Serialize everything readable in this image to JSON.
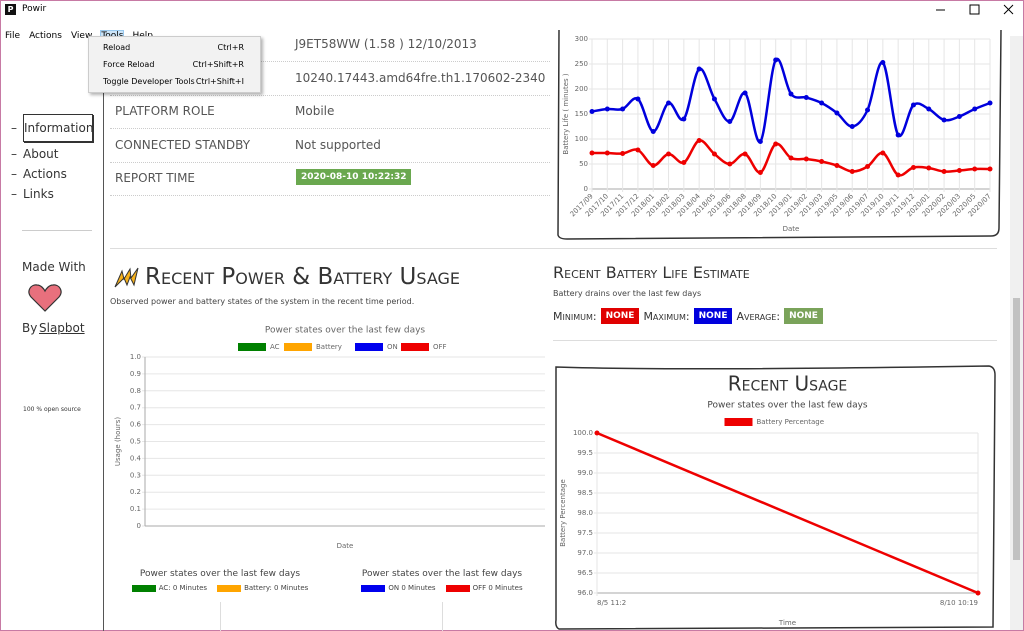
{
  "window": {
    "title": "Powir"
  },
  "menu": [
    "File",
    "Actions",
    "View",
    "Tools",
    "Help"
  ],
  "dropdown": [
    {
      "label": "Reload",
      "shortcut": "Ctrl+R"
    },
    {
      "label": "Force Reload",
      "shortcut": "Ctrl+Shift+R"
    },
    {
      "label": "Toggle Developer Tools",
      "shortcut": "Ctrl+Shift+I"
    }
  ],
  "sidebar": {
    "links": [
      "Information",
      "About",
      "Actions",
      "Links"
    ],
    "made_with": "Made With",
    "by": "By",
    "author": "Slapbot",
    "footer": "100 % open source"
  },
  "info_rows": [
    {
      "value": "J9ET58WW (1.58 ) 12/10/2013"
    },
    {
      "value": "10240.17443.amd64fre.th1.170602-2340"
    },
    {
      "label": "PLATFORM ROLE",
      "value": "Mobile"
    },
    {
      "label": "CONNECTED STANDBY",
      "value": "Not supported"
    },
    {
      "label": "REPORT TIME",
      "value": "2020-08-10 10:22:32"
    }
  ],
  "section": {
    "title": "Recent Power & Battery Usage",
    "subtitle": "Observed power and battery states of the system in the recent time period."
  },
  "estimate": {
    "title": "Recent Battery Life Estimate",
    "subtitle": "Battery drains over the last few days",
    "items": [
      {
        "label": "Minimum:",
        "value": "NONE",
        "color": "#e00000"
      },
      {
        "label": "Maximum:",
        "value": "NONE",
        "color": "#0000dd"
      },
      {
        "label": "Average:",
        "value": "NONE",
        "color": "#7aa35a"
      }
    ]
  },
  "battery_chart": {
    "type": "line",
    "ylabel": "Battery Life ( minutes )",
    "xlabel": "Date",
    "categories": [
      "2017/09",
      "2017/10",
      "2017/11",
      "2017/12",
      "2018/01",
      "2018/02",
      "2018/03",
      "2018/04",
      "2018/05",
      "2018/06",
      "2018/08",
      "2018/09",
      "2018/10",
      "2019/01",
      "2019/02",
      "2019/03",
      "2019/05",
      "2019/06",
      "2019/07",
      "2019/10",
      "2019/11",
      "2019/12",
      "2020/01",
      "2020/02",
      "2020/03",
      "2020/05",
      "2020/07"
    ],
    "series": [
      {
        "color": "#0000dd",
        "values": [
          155,
          160,
          160,
          180,
          115,
          172,
          140,
          240,
          180,
          135,
          192,
          95,
          258,
          190,
          183,
          172,
          152,
          125,
          158,
          253,
          108,
          168,
          160,
          138,
          145,
          160,
          172
        ]
      },
      {
        "color": "#ee0000",
        "values": [
          72,
          72,
          71,
          78,
          47,
          70,
          53,
          97,
          70,
          50,
          70,
          33,
          90,
          62,
          60,
          55,
          47,
          35,
          45,
          72,
          28,
          43,
          42,
          35,
          37,
          40,
          40
        ]
      }
    ],
    "ylim": [
      0,
      300
    ],
    "yticks": [
      0,
      50,
      100,
      150,
      200,
      250,
      300
    ],
    "grid": true,
    "smooth": true
  },
  "power_chart": {
    "type": "line",
    "title": "Power states over the last few days",
    "ylabel": "Usage (hours)",
    "xlabel": "Date",
    "categories": [],
    "series": [
      {
        "name": "AC",
        "color": "#008000",
        "values": []
      },
      {
        "name": "Battery",
        "color": "#ffa500",
        "values": []
      },
      {
        "name": "ON",
        "color": "#0000ee",
        "values": []
      },
      {
        "name": "OFF",
        "color": "#ee0000",
        "values": []
      }
    ],
    "ylim": [
      0,
      1
    ],
    "yticks": [
      0,
      0.1,
      0.2,
      0.3,
      0.4,
      0.5,
      0.6,
      0.7,
      0.8,
      0.9,
      {
        "value": 1,
        "label": "1.0"
      }
    ],
    "grid": true
  },
  "usage_chart": {
    "type": "line",
    "title": "Recent Usage",
    "subtitle": "Power states over the last few days",
    "ylabel": "Battery Percentage",
    "xlabel": "Time",
    "categories": [
      "8/5 11:2",
      "8/10 10:19"
    ],
    "series": [
      {
        "name": "Battery Percentage",
        "color": "#ee0000",
        "values": [
          100,
          96
        ]
      }
    ],
    "ylim": [
      96,
      100
    ],
    "yticks": [
      {
        "value": 96,
        "label": "96.0"
      },
      96.5,
      {
        "value": 97,
        "label": "97.0"
      },
      97.5,
      {
        "value": 98,
        "label": "98.0"
      },
      98.5,
      {
        "value": 99,
        "label": "99.0"
      },
      99.5,
      {
        "value": 100,
        "label": "100.0"
      }
    ],
    "grid": true
  },
  "power_summary": [
    {
      "title": "Power states over the last few days",
      "items": [
        {
          "label": "AC: 0 Minutes",
          "color": "#008000"
        },
        {
          "label": "Battery: 0 Minutes",
          "color": "#ffa500"
        }
      ]
    },
    {
      "title": "Power states over the last few days",
      "items": [
        {
          "label": "ON 0 Minutes",
          "color": "#0000ee"
        },
        {
          "label": "OFF 0 Minutes",
          "color": "#ee0000"
        }
      ]
    }
  ]
}
